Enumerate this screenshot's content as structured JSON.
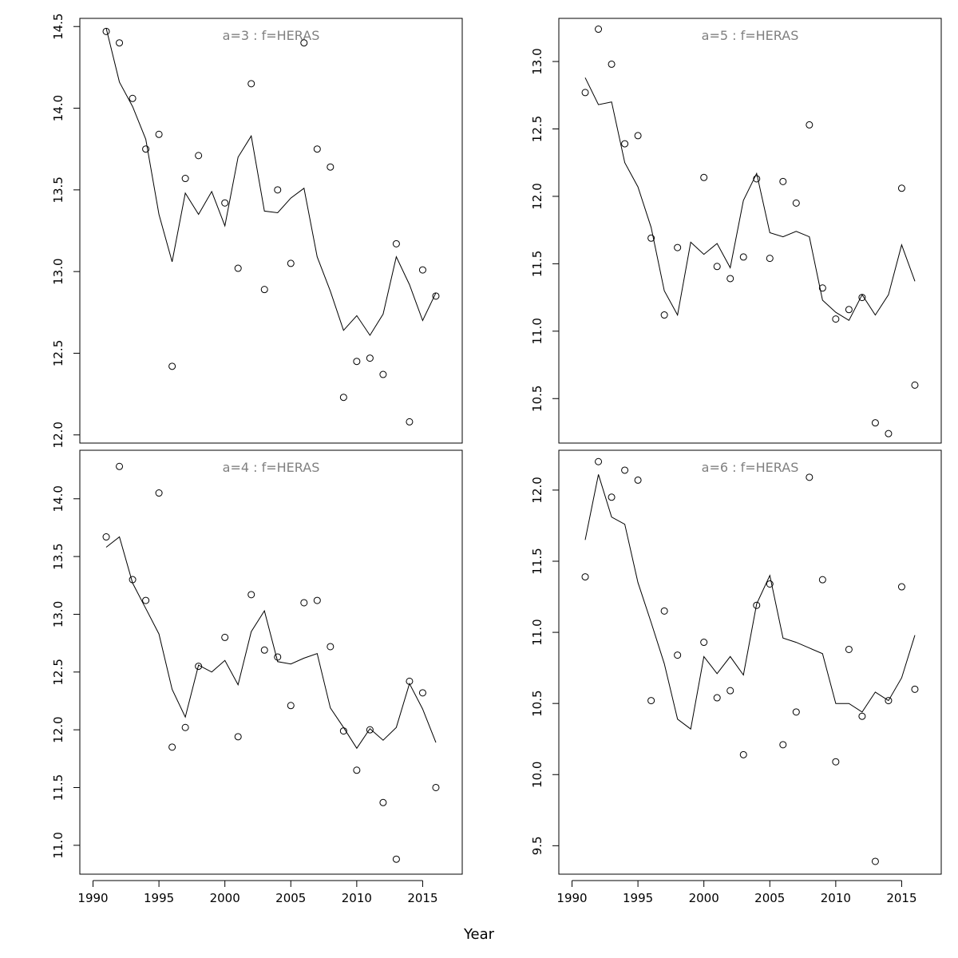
{
  "figure": {
    "xlabel": "Year"
  },
  "chart_data": [
    {
      "type": "scatter",
      "title": "a=3  :  f=HERAS",
      "xlim": [
        1989,
        2018
      ],
      "ylim": [
        11.95,
        14.55
      ],
      "x_ticks": [
        1990,
        1995,
        2000,
        2005,
        2010,
        2015
      ],
      "y_ticks": [
        12.0,
        12.5,
        13.0,
        13.5,
        14.0,
        14.5
      ],
      "y_tick_labels": [
        "12.0",
        "12.5",
        "13.0",
        "13.5",
        "14.0",
        "14.5"
      ],
      "show_x_axis": false,
      "years": [
        1991,
        1992,
        1993,
        1994,
        1995,
        1996,
        1997,
        1998,
        1999,
        2000,
        2001,
        2002,
        2003,
        2004,
        2005,
        2006,
        2007,
        2008,
        2009,
        2010,
        2011,
        2012,
        2013,
        2014,
        2015,
        2016
      ],
      "observed": [
        14.47,
        14.4,
        14.06,
        13.75,
        13.84,
        12.42,
        13.57,
        13.71,
        null,
        13.42,
        13.02,
        14.15,
        12.89,
        13.5,
        13.05,
        14.4,
        13.75,
        13.64,
        12.23,
        12.45,
        12.47,
        12.37,
        13.17,
        12.08,
        13.01,
        12.85
      ],
      "fitted": [
        14.49,
        14.16,
        14.01,
        13.81,
        13.35,
        13.06,
        13.48,
        13.35,
        13.49,
        13.28,
        13.7,
        13.83,
        13.37,
        13.36,
        13.45,
        13.51,
        13.09,
        12.88,
        12.64,
        12.73,
        12.61,
        12.74,
        13.09,
        12.92,
        12.7,
        12.87
      ]
    },
    {
      "type": "scatter",
      "title": "a=5  :  f=HERAS",
      "xlim": [
        1989,
        2018
      ],
      "ylim": [
        10.17,
        13.32
      ],
      "x_ticks": [
        1990,
        1995,
        2000,
        2005,
        2010,
        2015
      ],
      "y_ticks": [
        10.5,
        11.0,
        11.5,
        12.0,
        12.5,
        13.0
      ],
      "y_tick_labels": [
        "10.5",
        "11.0",
        "11.5",
        "12.0",
        "12.5",
        "13.0"
      ],
      "show_x_axis": false,
      "years": [
        1991,
        1992,
        1993,
        1994,
        1995,
        1996,
        1997,
        1998,
        1999,
        2000,
        2001,
        2002,
        2003,
        2004,
        2005,
        2006,
        2007,
        2008,
        2009,
        2010,
        2011,
        2012,
        2013,
        2014,
        2015,
        2016
      ],
      "observed": [
        12.77,
        13.24,
        12.98,
        12.39,
        12.45,
        11.69,
        11.12,
        11.62,
        null,
        12.14,
        11.48,
        11.39,
        11.55,
        12.13,
        11.54,
        12.11,
        11.95,
        12.53,
        11.32,
        11.09,
        11.16,
        11.25,
        10.32,
        10.24,
        12.06,
        10.6
      ],
      "fitted": [
        12.88,
        12.68,
        12.7,
        12.25,
        12.07,
        11.77,
        11.3,
        11.12,
        11.66,
        11.57,
        11.65,
        11.47,
        11.97,
        12.17,
        11.73,
        11.7,
        11.74,
        11.7,
        11.23,
        11.14,
        11.08,
        11.27,
        11.12,
        11.27,
        11.64,
        11.37
      ]
    },
    {
      "type": "scatter",
      "title": "a=4  :  f=HERAS",
      "xlim": [
        1989,
        2018
      ],
      "ylim": [
        10.75,
        14.42
      ],
      "x_ticks": [
        1990,
        1995,
        2000,
        2005,
        2010,
        2015
      ],
      "x_tick_labels": [
        "1990",
        "1995",
        "2000",
        "2005",
        "2010",
        "2015"
      ],
      "y_ticks": [
        11.0,
        11.5,
        12.0,
        12.5,
        13.0,
        13.5,
        14.0
      ],
      "y_tick_labels": [
        "11.0",
        "11.5",
        "12.0",
        "12.5",
        "13.0",
        "13.5",
        "14.0"
      ],
      "show_x_axis": true,
      "years": [
        1991,
        1992,
        1993,
        1994,
        1995,
        1996,
        1997,
        1998,
        1999,
        2000,
        2001,
        2002,
        2003,
        2004,
        2005,
        2006,
        2007,
        2008,
        2009,
        2010,
        2011,
        2012,
        2013,
        2014,
        2015,
        2016
      ],
      "observed": [
        13.67,
        14.28,
        13.3,
        13.12,
        14.05,
        11.85,
        12.02,
        12.55,
        null,
        12.8,
        11.94,
        13.17,
        12.69,
        12.63,
        12.21,
        13.1,
        13.12,
        12.72,
        11.99,
        11.65,
        12.0,
        11.37,
        10.88,
        12.42,
        12.32,
        11.5
      ],
      "fitted": [
        13.58,
        13.67,
        13.27,
        13.05,
        12.83,
        12.35,
        12.11,
        12.56,
        12.5,
        12.6,
        12.39,
        12.85,
        13.03,
        12.59,
        12.57,
        12.62,
        12.66,
        12.19,
        12.02,
        11.84,
        12.01,
        11.91,
        12.02,
        12.4,
        12.18,
        11.89
      ]
    },
    {
      "type": "scatter",
      "title": "a=6  :  f=HERAS",
      "xlim": [
        1989,
        2018
      ],
      "ylim": [
        9.3,
        12.28
      ],
      "x_ticks": [
        1990,
        1995,
        2000,
        2005,
        2010,
        2015
      ],
      "x_tick_labels": [
        "1990",
        "1995",
        "2000",
        "2005",
        "2010",
        "2015"
      ],
      "y_ticks": [
        9.5,
        10.0,
        10.5,
        11.0,
        11.5,
        12.0
      ],
      "y_tick_labels": [
        "9.5",
        "10.0",
        "10.5",
        "11.0",
        "11.5",
        "12.0"
      ],
      "show_x_axis": true,
      "years": [
        1991,
        1992,
        1993,
        1994,
        1995,
        1996,
        1997,
        1998,
        1999,
        2000,
        2001,
        2002,
        2003,
        2004,
        2005,
        2006,
        2007,
        2008,
        2009,
        2010,
        2011,
        2012,
        2013,
        2014,
        2015,
        2016
      ],
      "observed": [
        11.39,
        12.2,
        11.95,
        12.14,
        12.07,
        10.52,
        11.15,
        10.84,
        null,
        10.93,
        10.54,
        10.59,
        10.14,
        11.19,
        11.34,
        10.21,
        10.44,
        12.09,
        11.37,
        10.09,
        10.88,
        10.41,
        9.39,
        10.52,
        11.32,
        10.6
      ],
      "fitted": [
        11.65,
        12.11,
        11.81,
        11.76,
        11.35,
        11.07,
        10.78,
        10.39,
        10.32,
        10.83,
        10.71,
        10.83,
        10.7,
        11.2,
        11.4,
        10.96,
        10.93,
        10.89,
        10.85,
        10.5,
        10.5,
        10.44,
        10.58,
        10.52,
        10.68,
        10.98
      ]
    }
  ]
}
